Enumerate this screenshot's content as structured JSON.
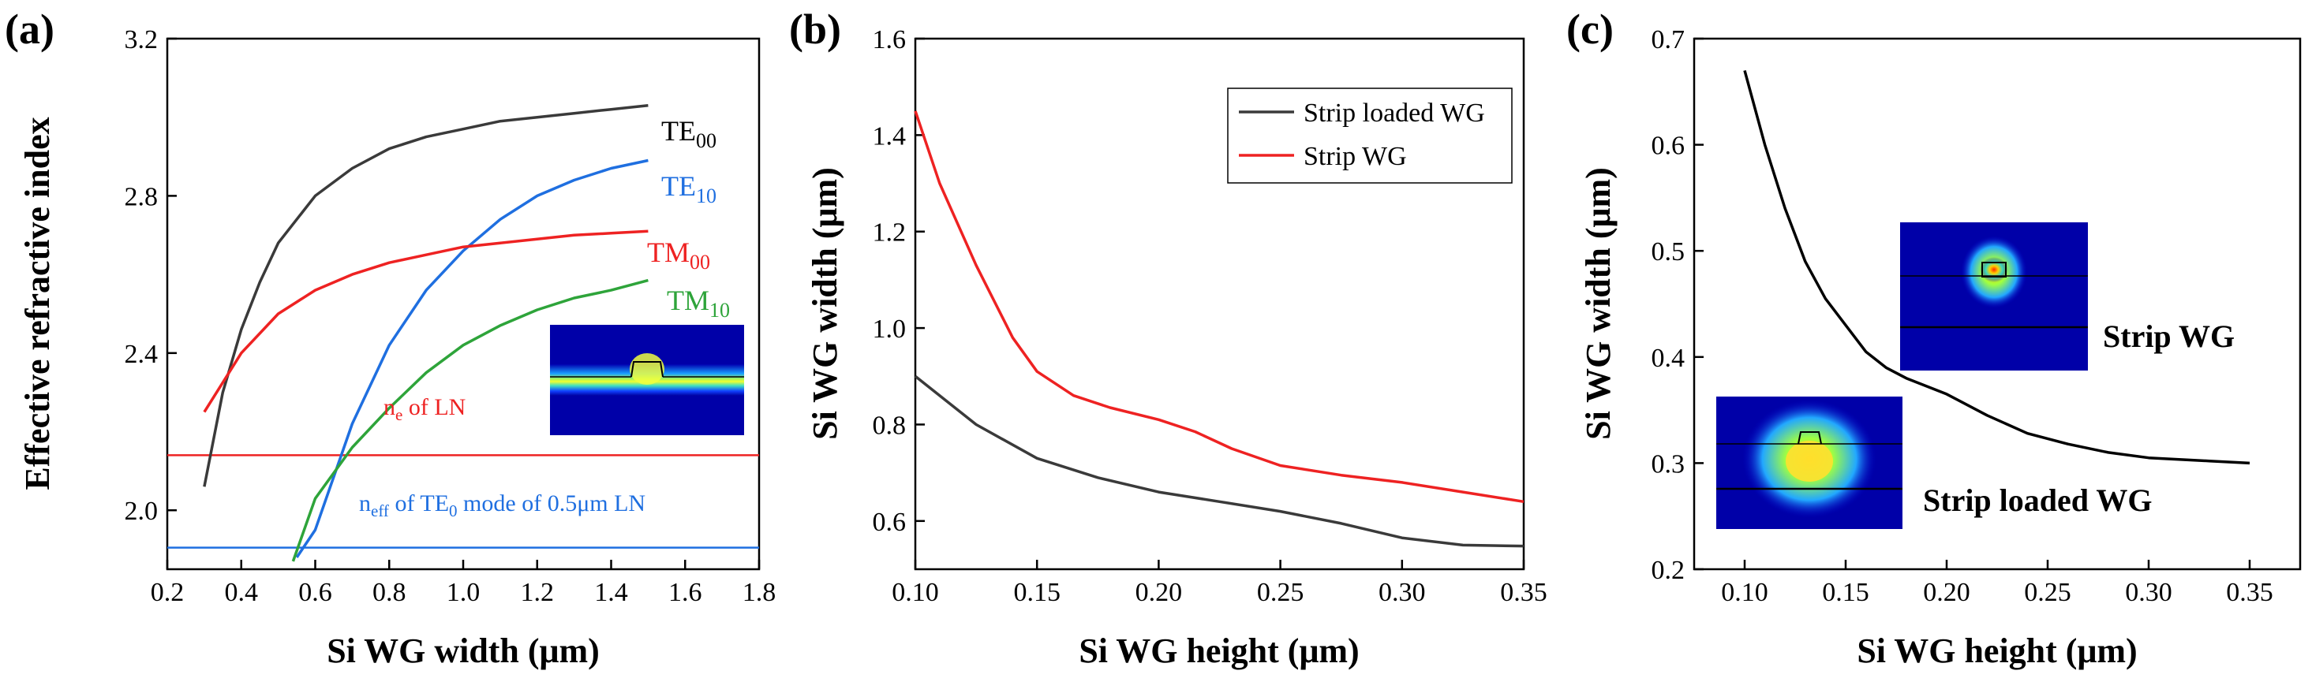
{
  "colors": {
    "gray": "#3a3a3a",
    "blue": "#1f6fe0",
    "red": "#ee2222",
    "green": "#2ea43a",
    "black": "#000000"
  },
  "chart_data": [
    {
      "panel": "(a)",
      "type": "line",
      "xlabel": "Si WG width (μm)",
      "ylabel": "Effective refractive index",
      "xlim": [
        0.2,
        1.8
      ],
      "ylim": [
        1.85,
        3.2
      ],
      "xticks": [
        "0.2",
        "0.4",
        "0.6",
        "0.8",
        "1.0",
        "1.2",
        "1.4",
        "1.6",
        "1.8"
      ],
      "yticks": [
        "2.0",
        "2.4",
        "2.8",
        "3.2"
      ],
      "series": [
        {
          "name": "TE00",
          "label_main": "TE",
          "label_sub": "00",
          "color": "gray",
          "x": [
            0.3,
            0.35,
            0.4,
            0.45,
            0.5,
            0.6,
            0.7,
            0.8,
            0.9,
            1.0,
            1.1,
            1.2,
            1.3,
            1.4,
            1.5
          ],
          "y": [
            2.06,
            2.3,
            2.46,
            2.58,
            2.68,
            2.8,
            2.87,
            2.92,
            2.95,
            2.97,
            2.99,
            3.0,
            3.01,
            3.02,
            3.03
          ]
        },
        {
          "name": "TE10",
          "label_main": "TE",
          "label_sub": "10",
          "color": "blue",
          "x": [
            0.55,
            0.6,
            0.7,
            0.8,
            0.9,
            1.0,
            1.1,
            1.2,
            1.3,
            1.4,
            1.5
          ],
          "y": [
            1.88,
            1.95,
            2.22,
            2.42,
            2.56,
            2.66,
            2.74,
            2.8,
            2.84,
            2.87,
            2.89
          ]
        },
        {
          "name": "TM00",
          "label_main": "TM",
          "label_sub": "00",
          "color": "red",
          "x": [
            0.3,
            0.4,
            0.5,
            0.6,
            0.7,
            0.8,
            0.9,
            1.0,
            1.1,
            1.2,
            1.3,
            1.4,
            1.5
          ],
          "y": [
            2.25,
            2.4,
            2.5,
            2.56,
            2.6,
            2.63,
            2.65,
            2.67,
            2.68,
            2.69,
            2.7,
            2.705,
            2.71
          ]
        },
        {
          "name": "TM10",
          "label_main": "TM",
          "label_sub": "10",
          "color": "green",
          "x": [
            0.54,
            0.6,
            0.7,
            0.8,
            0.9,
            1.0,
            1.1,
            1.2,
            1.3,
            1.4,
            1.5
          ],
          "y": [
            1.87,
            2.03,
            2.16,
            2.26,
            2.35,
            2.42,
            2.47,
            2.51,
            2.54,
            2.56,
            2.585
          ]
        }
      ],
      "reference_lines": [
        {
          "y": 2.14,
          "color": "red",
          "label_prefix": "n",
          "label_sub": "e",
          "label_rest": " of LN"
        },
        {
          "y": 1.905,
          "color": "blue",
          "label_prefix": "n",
          "label_sub": "eff",
          "label_mid": " of TE",
          "label_sub2": "0",
          "label_rest": " mode of 0.5μm LN"
        }
      ]
    },
    {
      "panel": "(b)",
      "type": "line",
      "xlabel": "Si WG height (μm)",
      "ylabel": "Si WG width (μm)",
      "xlim": [
        0.1,
        0.35
      ],
      "ylim": [
        0.5,
        1.6
      ],
      "xticks": [
        "0.10",
        "0.15",
        "0.20",
        "0.25",
        "0.30",
        "0.35"
      ],
      "yticks": [
        "0.6",
        "0.8",
        "1.0",
        "1.2",
        "1.4",
        "1.6"
      ],
      "legend_position": "top-right",
      "series": [
        {
          "name": "Strip loaded WG",
          "color": "gray",
          "x": [
            0.1,
            0.125,
            0.15,
            0.175,
            0.2,
            0.225,
            0.25,
            0.275,
            0.3,
            0.325,
            0.35
          ],
          "y": [
            0.9,
            0.8,
            0.73,
            0.69,
            0.66,
            0.64,
            0.62,
            0.595,
            0.565,
            0.55,
            0.548
          ]
        },
        {
          "name": "Strip WG",
          "color": "red",
          "x": [
            0.1,
            0.11,
            0.125,
            0.14,
            0.15,
            0.165,
            0.18,
            0.2,
            0.215,
            0.23,
            0.25,
            0.275,
            0.3,
            0.325,
            0.35
          ],
          "y": [
            1.45,
            1.3,
            1.13,
            0.98,
            0.91,
            0.86,
            0.835,
            0.81,
            0.785,
            0.75,
            0.715,
            0.695,
            0.68,
            0.66,
            0.64
          ]
        }
      ]
    },
    {
      "panel": "(c)",
      "type": "line",
      "xlabel": "Si WG height (μm)",
      "ylabel": "Si WG width (μm)",
      "xlim": [
        0.075,
        0.375
      ],
      "ylim": [
        0.2,
        0.7
      ],
      "xticks": [
        "0.10",
        "0.15",
        "0.20",
        "0.25",
        "0.30",
        "0.35"
      ],
      "yticks": [
        "0.2",
        "0.3",
        "0.4",
        "0.5",
        "0.6",
        "0.7"
      ],
      "series": [
        {
          "color": "black",
          "x": [
            0.1,
            0.11,
            0.12,
            0.13,
            0.14,
            0.15,
            0.16,
            0.17,
            0.18,
            0.2,
            0.22,
            0.24,
            0.26,
            0.28,
            0.3,
            0.33,
            0.35
          ],
          "y": [
            0.67,
            0.6,
            0.54,
            0.49,
            0.455,
            0.43,
            0.405,
            0.39,
            0.38,
            0.365,
            0.345,
            0.328,
            0.318,
            0.31,
            0.305,
            0.302,
            0.3
          ]
        }
      ],
      "annotations": [
        "Strip WG",
        "Strip loaded WG"
      ]
    }
  ]
}
